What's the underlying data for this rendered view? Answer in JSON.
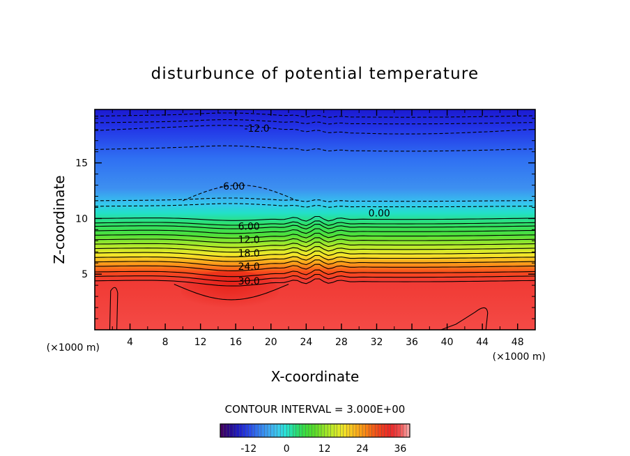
{
  "chart_data": {
    "type": "heatmap",
    "title": "disturbunce of potential temperature",
    "xlabel": "X-coordinate",
    "ylabel": "Z-coordinate",
    "x_unit_label": "(×1000 m)",
    "z_unit_label": "(×1000 m)",
    "xlim": [
      0,
      50
    ],
    "ylim": [
      0,
      19.8
    ],
    "x_ticks": [
      4,
      8,
      12,
      16,
      20,
      24,
      28,
      32,
      36,
      40,
      44,
      48
    ],
    "x_tick_labels": [
      "4",
      "8",
      "12",
      "16",
      "20",
      "24",
      "28",
      "32",
      "36",
      "40",
      "44",
      "48"
    ],
    "y_ticks": [
      5,
      10,
      15
    ],
    "y_tick_labels": [
      "5",
      "10",
      "15"
    ],
    "contour_interval_text": "CONTOUR INTERVAL = 3.000E+00",
    "contour_labels": [
      {
        "text": "-12.0",
        "x": 18.4,
        "z": 18.1
      },
      {
        "text": "-6.00",
        "x": 15.6,
        "z": 12.9
      },
      {
        "text": "0.00",
        "x": 32.3,
        "z": 10.5
      },
      {
        "text": "6.00",
        "x": 17.5,
        "z": 9.3
      },
      {
        "text": "12.0",
        "x": 17.5,
        "z": 8.1
      },
      {
        "text": "18.0",
        "x": 17.5,
        "z": 6.9
      },
      {
        "text": "24.0",
        "x": 17.5,
        "z": 5.7
      },
      {
        "text": "30.0",
        "x": 17.5,
        "z": 4.4
      }
    ],
    "colorbar": {
      "min": -21,
      "max": 39,
      "ticks": [
        -12,
        0,
        12,
        24,
        36
      ],
      "tick_labels": [
        "-12",
        "0",
        "12",
        "24",
        "36"
      ]
    }
  }
}
